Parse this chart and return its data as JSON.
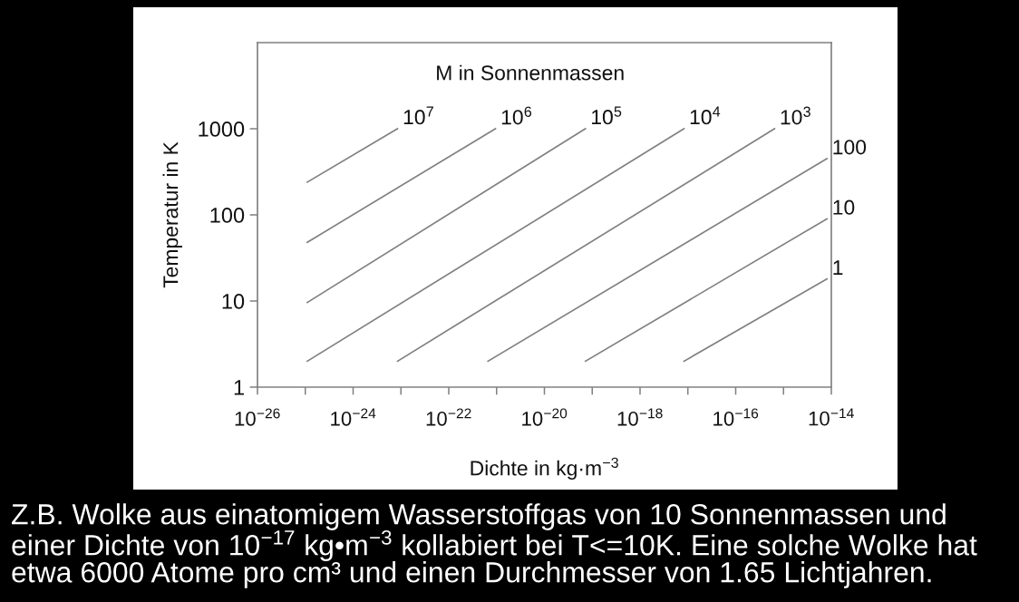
{
  "chart_data": {
    "type": "line",
    "xlabel": "Dichte in kg·m$^{−3}$",
    "ylabel": "Temperatur in K",
    "log": "xy",
    "xlim": [
      1e-26,
      1e-14
    ],
    "ylim": [
      1,
      10000
    ],
    "xticks": [
      {
        "value": 1e-26,
        "label": "10$^{−26}$"
      },
      {
        "value": 1e-25,
        "label": null
      },
      {
        "value": 1e-24,
        "label": "10$^{−24}$"
      },
      {
        "value": 1e-23,
        "label": null
      },
      {
        "value": 1e-22,
        "label": "10$^{−22}$"
      },
      {
        "value": 1e-21,
        "label": null
      },
      {
        "value": 1e-20,
        "label": "10$^{−20}$"
      },
      {
        "value": 1e-19,
        "label": null
      },
      {
        "value": 1e-18,
        "label": "10$^{−18}$"
      },
      {
        "value": 1e-17,
        "label": null
      },
      {
        "value": 1e-16,
        "label": "10$^{−16}$"
      },
      {
        "value": 1e-15,
        "label": null
      },
      {
        "value": 1e-14,
        "label": "10$^{−14}$"
      }
    ],
    "yticks": [
      1,
      10,
      100,
      1000
    ],
    "series": [
      {
        "name": "10$^{7}$",
        "color": "#808080",
        "x": [
          1.1e-25,
          8.5e-24
        ],
        "values": [
          240,
          1000
        ]
      },
      {
        "name": "10$^{6}$",
        "color": "#808080",
        "x": [
          1.1e-25,
          9.5e-22
        ],
        "values": [
          48,
          1000
        ]
      },
      {
        "name": "10$^{5}$",
        "color": "#808080",
        "x": [
          1.1e-25,
          7.2e-20
        ],
        "values": [
          9.6,
          1000
        ]
      },
      {
        "name": "10$^{4}$",
        "color": "#808080",
        "x": [
          1.1e-25,
          8.3e-18
        ],
        "values": [
          2,
          1000
        ]
      },
      {
        "name": "10$^{3}$",
        "color": "#808080",
        "x": [
          8.5e-24,
          6.5e-16
        ],
        "values": [
          2,
          1000
        ]
      },
      {
        "name": "100",
        "color": "#808080",
        "x": [
          6.6e-22,
          8.1e-15
        ],
        "values": [
          2,
          450
        ]
      },
      {
        "name": "10",
        "color": "#808080",
        "x": [
          7.2e-20,
          8.1e-15
        ],
        "values": [
          2,
          90
        ]
      },
      {
        "name": "1",
        "color": "#808080",
        "x": [
          8.3e-18,
          8.1e-15
        ],
        "values": [
          2,
          18
        ]
      }
    ],
    "annotations": [
      "M in Sonnenmassen",
      "Z.B. Wolke aus einatomigem Wasserstoffgas von 10 Sonnenmassen und\neiner Dichte von 10$^{−17}$ kg•m$^{−3}$ kollabiert bei T<=10K. Eine solche Wolke hat\netwa 6000 Atome pro cm³ und einen Durchmesser von 1.65 Lichtjahren."
    ]
  }
}
